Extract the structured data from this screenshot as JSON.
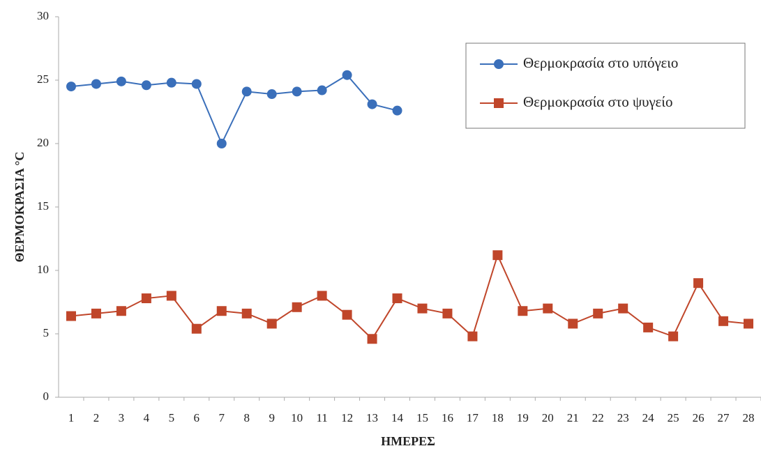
{
  "chart_data": {
    "type": "line",
    "x_label": "ΗΜΕΡΕΣ",
    "y_label": "ΘΕΡΜΟΚΡΑΣΙΑ °C",
    "categories": [
      "1",
      "2",
      "3",
      "4",
      "5",
      "6",
      "7",
      "8",
      "9",
      "10",
      "11",
      "12",
      "13",
      "14",
      "15",
      "16",
      "17",
      "18",
      "19",
      "20",
      "21",
      "22",
      "23",
      "24",
      "25",
      "26",
      "27",
      "28"
    ],
    "series": [
      {
        "name": "Θερμοκρασία στο υπόγειο",
        "color": "#3a6fba",
        "marker": "circle",
        "values": [
          24.5,
          24.7,
          24.9,
          24.6,
          24.8,
          24.7,
          20.0,
          24.1,
          23.9,
          24.1,
          24.2,
          25.4,
          23.1,
          22.6,
          null,
          null,
          null,
          null,
          null,
          null,
          null,
          null,
          null,
          null,
          null,
          null,
          null,
          null
        ]
      },
      {
        "name": "Θερμοκρασία στο ψυγείο",
        "color": "#c0462a",
        "marker": "square",
        "values": [
          6.4,
          6.6,
          6.8,
          7.8,
          8.0,
          5.4,
          6.8,
          6.6,
          5.8,
          7.1,
          8.0,
          6.5,
          4.6,
          7.8,
          7.0,
          6.6,
          4.8,
          11.2,
          6.8,
          7.0,
          5.8,
          6.6,
          7.0,
          5.5,
          4.8,
          9.0,
          6.0,
          5.8
        ]
      }
    ],
    "ylim": [
      0,
      30
    ],
    "yticks": [
      0,
      5,
      10,
      15,
      20,
      25,
      30
    ],
    "grid": false,
    "legend": "upper right"
  }
}
